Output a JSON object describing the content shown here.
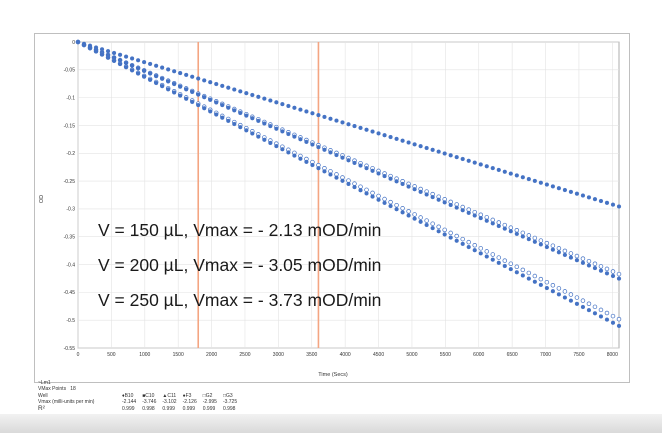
{
  "chart_data": {
    "type": "scatter",
    "title": "",
    "xlabel": "Time (Secs)",
    "ylabel": "OD",
    "xlim": [
      0,
      8100
    ],
    "ylim": [
      -0.55,
      0
    ],
    "x_ticks": [
      0,
      500,
      1000,
      1500,
      2000,
      2500,
      3000,
      3500,
      4000,
      4500,
      5000,
      5500,
      6000,
      6500,
      7000,
      7500,
      8000
    ],
    "y_ticks": [
      "0",
      "-0.05",
      "-0.1",
      "-0.15",
      "-0.2",
      "-0.25",
      "-0.3",
      "-0.35",
      "-0.4",
      "-0.45",
      "-0.5",
      "-0.55"
    ],
    "grid": true,
    "vlines": [
      1800,
      3600
    ],
    "vline_color": "#f4a582",
    "series": [
      {
        "slope": -3.65e-05,
        "marker": "filled",
        "x_start": 0,
        "x_end": 8100,
        "step": 90
      },
      {
        "slope": -5.15e-05,
        "marker": "open",
        "x_start": 0,
        "x_end": 8100,
        "step": 90
      },
      {
        "slope": -5.25e-05,
        "marker": "filled",
        "x_start": 0,
        "x_end": 8100,
        "step": 90
      },
      {
        "slope": -6.15e-05,
        "marker": "open",
        "x_start": 0,
        "x_end": 8100,
        "step": 90
      },
      {
        "slope": -6.3e-05,
        "marker": "filled",
        "x_start": 0,
        "x_end": 8100,
        "step": 90
      }
    ],
    "series_color": "#4472c4",
    "annotations": [
      "V = 150 µL, Vmax =  - 2.13 mOD/min",
      "V = 200 µL, Vmax =  - 3.05 mOD/min",
      "V = 250 µL, Vmax =  - 3.73 mOD/min"
    ]
  },
  "results": {
    "label": "~Lm1",
    "vmax_points_label": "VMax Points",
    "vmax_points_value": "18",
    "row_labels": [
      "Well",
      "Vmax (milli-units per min)",
      "R²"
    ],
    "wells": [
      "B10",
      "C10",
      "C11",
      "F3",
      "G2",
      "G3"
    ],
    "well_markers": [
      "♦",
      "■",
      "▲",
      "●",
      "□",
      "□"
    ],
    "vmax": [
      "-2.144",
      "-3.746",
      "-3.102",
      "-2.126",
      "-2.995",
      "-3.725"
    ],
    "r2": [
      "0.999",
      "0.998",
      "0.999",
      "0.999",
      "0.999",
      "0.998"
    ]
  }
}
